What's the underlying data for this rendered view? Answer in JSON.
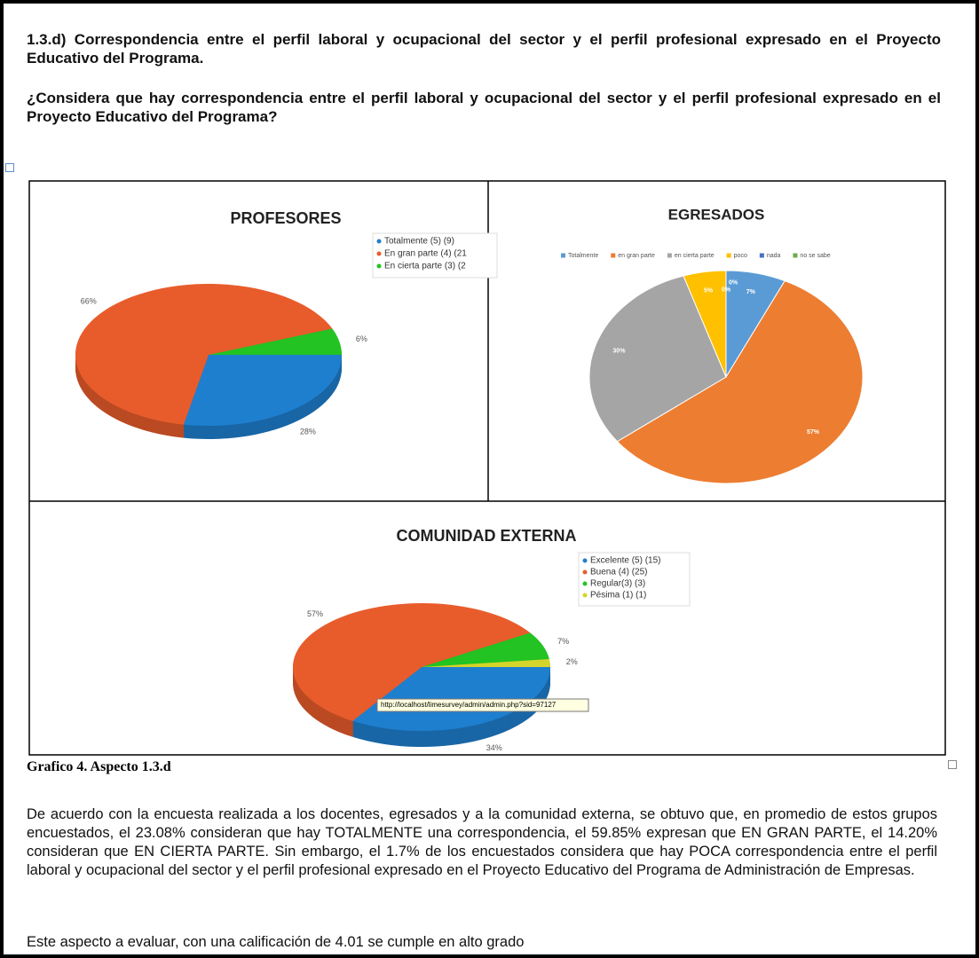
{
  "heading": "1.3.d) Correspondencia entre el perfil laboral y ocupacional del sector y el perfil profesional expresado en el Proyecto Educativo del Programa.",
  "question": "¿Considera que hay correspondencia entre el perfil laboral y ocupacional del sector y el perfil profesional expresado en el Proyecto Educativo del Programa?",
  "caption": "Grafico 4. Aspecto 1.3.d",
  "paragraphs": [
    "De acuerdo con la encuesta realizada a los docentes, egresados y a la comunidad externa, se obtuvo que, en promedio de estos grupos encuestados, el 23.08% consideran que hay TOTALMENTE una correspondencia, el 59.85% expresan que EN GRAN PARTE, el 14.20% consideran que EN CIERTA PARTE. Sin embargo, el 1.7% de los encuestados considera que hay POCA correspondencia entre el perfil laboral y ocupacional del sector y el perfil profesional expresado en el Proyecto Educativo del Programa de Administración de Empresas.",
    "Este aspecto a evaluar, con una calificación de 4.01 se cumple en alto grado"
  ],
  "tooltip": "http://localhost/limesurvey/admin/admin.php?sid=97127",
  "chart_data": [
    {
      "type": "pie",
      "title": "PROFESORES",
      "categories": [
        "Totalmente (5) (9)",
        "En gran parte (4) (21",
        "En cierta parte (3) (2"
      ],
      "values": [
        28,
        66,
        6
      ],
      "value_labels": [
        "28%",
        "66%",
        "6%"
      ],
      "colors": [
        "#1f7fcf",
        "#e85c2c",
        "#22c322"
      ]
    },
    {
      "type": "pie",
      "title": "EGRESADOS",
      "categories": [
        "Totalmente",
        "en gran parte",
        "en cierta parte",
        "poco",
        "nada",
        "no se sabe"
      ],
      "values": [
        7,
        57,
        30,
        5,
        0,
        0
      ],
      "value_labels": [
        "7%",
        "57%",
        "30%",
        "5%",
        "0%",
        "0%"
      ],
      "colors": [
        "#5b9bd5",
        "#ed7d31",
        "#a5a5a5",
        "#ffc000",
        "#4472c4",
        "#70ad47"
      ]
    },
    {
      "type": "pie",
      "title": "COMUNIDAD EXTERNA",
      "categories": [
        "Excelente (5) (15)",
        "Buena (4) (25)",
        "Regular(3) (3)",
        "Pésima (1) (1)"
      ],
      "values": [
        34,
        57,
        7,
        2
      ],
      "value_labels": [
        "34%",
        "57%",
        "7%",
        "2%"
      ],
      "colors": [
        "#1f7fcf",
        "#e85c2c",
        "#22c322",
        "#d4d42a"
      ]
    }
  ]
}
